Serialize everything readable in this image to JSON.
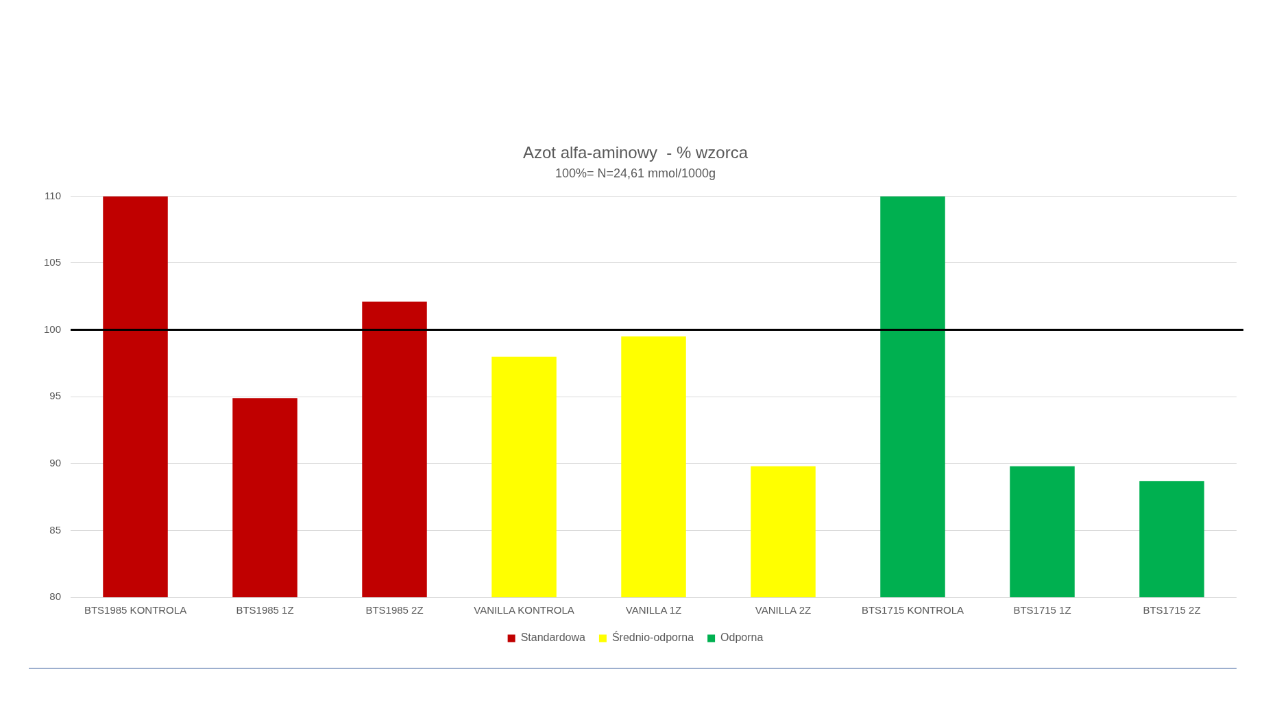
{
  "chart_data": {
    "type": "bar",
    "title": "Azot alfa-aminowy  - % wzorca",
    "subtitle": "100%= N=24,61 mmol/1000g",
    "categories": [
      "BTS1985 KONTROLA",
      "BTS1985 1Z",
      "BTS1985 2Z",
      "VANILLA KONTROLA",
      "VANILLA 1Z",
      "VANILLA 2Z",
      "BTS1715 KONTROLA",
      "BTS1715 1Z",
      "BTS1715 2Z"
    ],
    "series": [
      {
        "name": "Standardowa",
        "color": "#c00000",
        "values": [
          110,
          94.9,
          102.1,
          null,
          null,
          null,
          null,
          null,
          null
        ]
      },
      {
        "name": "Średnio-odporna",
        "color": "#ffff00",
        "values": [
          null,
          null,
          null,
          98.0,
          99.5,
          89.8,
          null,
          null,
          null
        ]
      },
      {
        "name": "Odporna",
        "color": "#00b050",
        "values": [
          null,
          null,
          null,
          null,
          null,
          null,
          110,
          89.8,
          88.7
        ]
      }
    ],
    "ylim": [
      80,
      110
    ],
    "yticks": [
      80,
      85,
      90,
      95,
      100,
      105,
      110
    ],
    "grid": "y",
    "legend": "bottom",
    "ref_lines": [
      {
        "axis": "y",
        "value": 100,
        "color": "#000000"
      }
    ]
  }
}
